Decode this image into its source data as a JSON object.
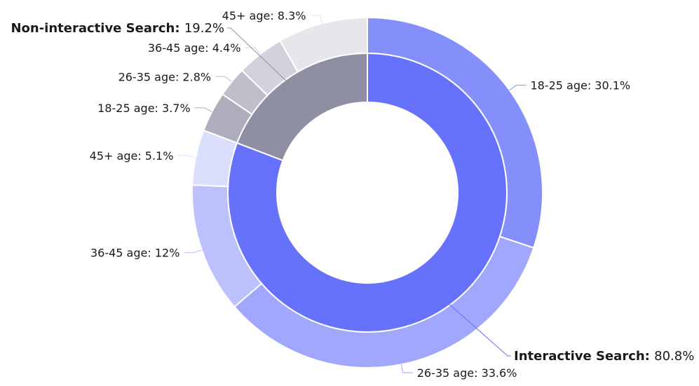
{
  "chart_data": {
    "type": "pie",
    "subtype": "sunburst-donut",
    "inner": [
      {
        "name": "Interactive Search",
        "value": 80.8,
        "value_label": "80.8%",
        "color": "#6672fb"
      },
      {
        "name": "Non-interactive Search",
        "value": 19.2,
        "value_label": "19.2%",
        "color": "#8f8fa3"
      }
    ],
    "outer": [
      {
        "parent": "Interactive Search",
        "label": "18-25 age: 30.1%",
        "value": 30.1,
        "color": "#848ffc"
      },
      {
        "parent": "Interactive Search",
        "label": "26-35 age: 33.6%",
        "value": 33.6,
        "color": "#a0a7fc"
      },
      {
        "parent": "Interactive Search",
        "label": "36-45 age: 12%",
        "value": 12.0,
        "color": "#bcc1fd"
      },
      {
        "parent": "Interactive Search",
        "label": "45+ age: 5.1%",
        "value": 5.1,
        "color": "#dcdefe"
      },
      {
        "parent": "Non-interactive Search",
        "label": "18-25 age: 3.7%",
        "value": 3.7,
        "color": "#adadbd"
      },
      {
        "parent": "Non-interactive Search",
        "label": "26-35 age: 2.8%",
        "value": 2.8,
        "color": "#bfbfcc"
      },
      {
        "parent": "Non-interactive Search",
        "label": "36-45 age: 4.4%",
        "value": 4.4,
        "color": "#d2d2dc"
      },
      {
        "parent": "Non-interactive Search",
        "label": "45+ age: 8.3%",
        "value": 8.3,
        "color": "#e6e6eb"
      }
    ]
  }
}
